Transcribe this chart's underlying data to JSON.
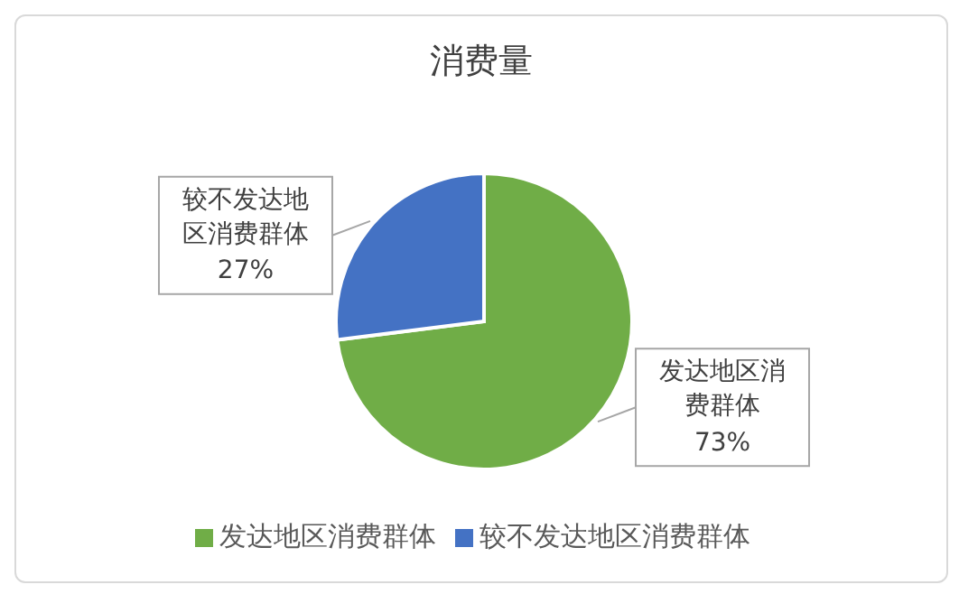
{
  "chart_data": {
    "type": "pie",
    "title": "消费量",
    "categories": [
      "发达地区消费群体",
      "较不发达地区消费群体"
    ],
    "values": [
      73,
      27
    ],
    "colors": [
      "#70ad47",
      "#4472c4"
    ],
    "value_labels": [
      "73%",
      "27%"
    ],
    "legend": "bottom"
  }
}
